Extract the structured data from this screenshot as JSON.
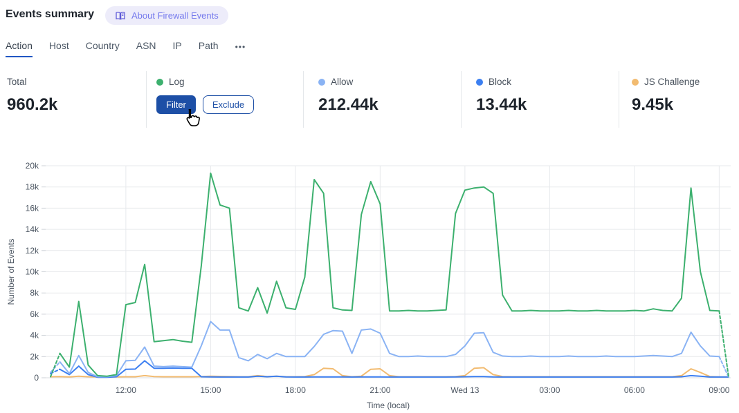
{
  "header": {
    "title": "Events summary",
    "about_badge": "About Firewall Events"
  },
  "tabs": {
    "items": [
      {
        "label": "Action",
        "active": true
      },
      {
        "label": "Host",
        "active": false
      },
      {
        "label": "Country",
        "active": false
      },
      {
        "label": "ASN",
        "active": false
      },
      {
        "label": "IP",
        "active": false
      },
      {
        "label": "Path",
        "active": false
      }
    ],
    "more_label": "•••"
  },
  "stats": {
    "total": {
      "label": "Total",
      "value": "960.2k"
    },
    "log": {
      "label": "Log",
      "color": "#3cb06e",
      "filter_label": "Filter",
      "exclude_label": "Exclude"
    },
    "allow": {
      "label": "Allow",
      "value": "212.44k",
      "color": "#8ab3f4"
    },
    "block": {
      "label": "Block",
      "value": "13.44k",
      "color": "#3c7ff1"
    },
    "js_challenge": {
      "label": "JS Challenge",
      "value": "9.45k",
      "color": "#f2bb70"
    }
  },
  "chart_data": {
    "type": "line",
    "xlabel": "Time (local)",
    "ylabel": "Number of Events",
    "ylim": [
      0,
      20000
    ],
    "grid": true,
    "x_start": "09:20",
    "x_step_minutes": 20,
    "yticks": [
      "0",
      "2k",
      "4k",
      "6k",
      "8k",
      "10k",
      "12k",
      "14k",
      "16k",
      "18k",
      "20k"
    ],
    "xticks": [
      {
        "label": "12:00",
        "index": 8
      },
      {
        "label": "15:00",
        "index": 17
      },
      {
        "label": "18:00",
        "index": 26
      },
      {
        "label": "21:00",
        "index": 35
      },
      {
        "label": "Wed 13",
        "index": 44
      },
      {
        "label": "03:00",
        "index": 53
      },
      {
        "label": "06:00",
        "index": 62
      },
      {
        "label": "09:00",
        "index": 71
      }
    ],
    "series": [
      {
        "name": "Log",
        "color": "#3cb06e",
        "dash_in": 1,
        "dash_out": 1,
        "values": [
          100,
          2300,
          1000,
          7200,
          1200,
          200,
          150,
          300,
          6900,
          7100,
          10700,
          3400,
          3500,
          3600,
          3450,
          3350,
          10500,
          19300,
          16300,
          16000,
          6600,
          6300,
          8500,
          6100,
          9100,
          6600,
          6450,
          9500,
          18700,
          17400,
          6600,
          6400,
          6350,
          15400,
          18500,
          16400,
          6300,
          6300,
          6350,
          6300,
          6300,
          6350,
          6400,
          15500,
          17700,
          17900,
          18000,
          17400,
          7800,
          6300,
          6300,
          6350,
          6300,
          6300,
          6300,
          6350,
          6300,
          6300,
          6350,
          6300,
          6300,
          6300,
          6350,
          6300,
          6500,
          6350,
          6300,
          7500,
          17900,
          10000,
          6350,
          6300,
          100
        ]
      },
      {
        "name": "Allow",
        "color": "#8ab3f4",
        "dash_in": 1,
        "dash_out": 1,
        "values": [
          500,
          1500,
          400,
          2100,
          500,
          100,
          100,
          200,
          1600,
          1650,
          2900,
          1100,
          1050,
          1100,
          1050,
          1000,
          3000,
          5300,
          4500,
          4500,
          1900,
          1600,
          2200,
          1800,
          2300,
          2000,
          2000,
          2000,
          2950,
          4100,
          4450,
          4400,
          2300,
          4500,
          4600,
          4200,
          2300,
          2000,
          2000,
          2050,
          2000,
          2000,
          2000,
          2200,
          3000,
          4200,
          4250,
          2400,
          2050,
          2000,
          2000,
          2050,
          2000,
          2000,
          2000,
          2050,
          2000,
          2000,
          2000,
          2050,
          2000,
          2000,
          2000,
          2050,
          2100,
          2050,
          2000,
          2300,
          4300,
          3000,
          2050,
          2000,
          50
        ]
      },
      {
        "name": "Block",
        "color": "#3c7ff1",
        "dash_in": 1,
        "dash_out": 0,
        "values": [
          400,
          800,
          300,
          1100,
          300,
          50,
          50,
          100,
          800,
          820,
          1600,
          900,
          900,
          920,
          900,
          900,
          100,
          80,
          70,
          70,
          70,
          70,
          150,
          100,
          150,
          80,
          70,
          70,
          80,
          80,
          80,
          80,
          70,
          80,
          80,
          80,
          70,
          70,
          70,
          70,
          70,
          70,
          70,
          80,
          100,
          120,
          120,
          80,
          70,
          70,
          70,
          70,
          70,
          70,
          70,
          70,
          70,
          70,
          70,
          70,
          70,
          70,
          70,
          70,
          70,
          70,
          70,
          100,
          200,
          150,
          70,
          70,
          70
        ]
      },
      {
        "name": "JS Challenge",
        "color": "#f2bb70",
        "dash_in": 0,
        "dash_out": 0,
        "values": [
          100,
          120,
          80,
          150,
          100,
          80,
          80,
          80,
          100,
          100,
          200,
          120,
          100,
          100,
          100,
          100,
          120,
          150,
          130,
          120,
          100,
          100,
          200,
          120,
          150,
          100,
          100,
          120,
          300,
          900,
          850,
          200,
          100,
          150,
          800,
          850,
          200,
          100,
          100,
          100,
          100,
          100,
          100,
          120,
          200,
          900,
          950,
          300,
          120,
          100,
          100,
          100,
          100,
          100,
          100,
          100,
          100,
          100,
          100,
          100,
          100,
          100,
          100,
          100,
          100,
          100,
          100,
          200,
          850,
          500,
          120,
          80,
          80
        ]
      }
    ]
  }
}
